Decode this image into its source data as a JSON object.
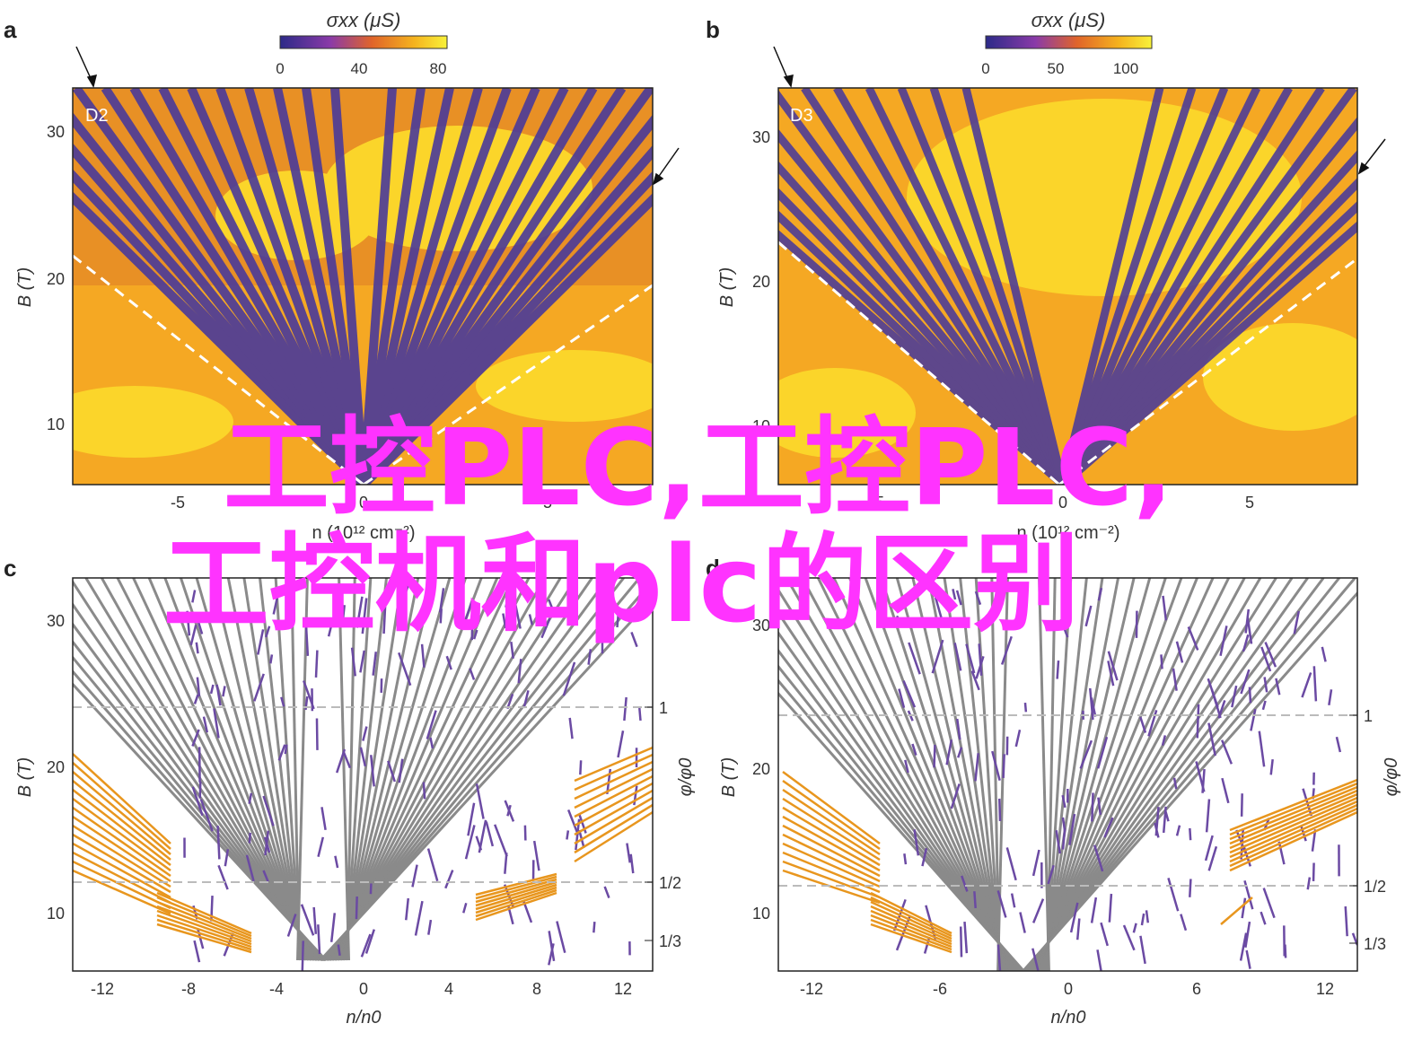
{
  "panels": [
    {
      "letter": "a",
      "label": "D2",
      "colorbar_title": "σxx (μS)",
      "colorbar_ticks": [
        "0",
        "40",
        "80"
      ],
      "x_ticks": [
        "-5",
        "0",
        "5"
      ],
      "y_ticks": [
        "10",
        "20",
        "30"
      ],
      "ylabel": "B (T)",
      "xlabel": "n (10¹² cm⁻²)"
    },
    {
      "letter": "b",
      "label": "D3",
      "colorbar_title": "σxx (μS)",
      "colorbar_ticks": [
        "0",
        "50",
        "100"
      ],
      "x_ticks": [
        "-5",
        "0",
        "5"
      ],
      "y_ticks": [
        "10",
        "20",
        "30"
      ],
      "ylabel": "B (T)",
      "xlabel": "n (10¹² cm⁻²)"
    },
    {
      "letter": "c",
      "x_ticks": [
        "-12",
        "-8",
        "-4",
        "0",
        "4",
        "8",
        "12"
      ],
      "y_ticks": [
        "10",
        "20",
        "30"
      ],
      "right_ticks": [
        "1",
        "1/2",
        "1/3"
      ],
      "ylabel": "B (T)",
      "right_label": "φ/φ0",
      "xlabel": "n/n0"
    },
    {
      "letter": "d",
      "x_ticks": [
        "-12",
        "-6",
        "0",
        "6",
        "12"
      ],
      "y_ticks": [
        "10",
        "20",
        "30"
      ],
      "right_ticks": [
        "1",
        "1/2",
        "1/3"
      ],
      "ylabel": "B (T)",
      "right_label": "φ/φ0",
      "xlabel": "n/n0"
    }
  ],
  "overlay": {
    "line1": "工控PLC,工控PLC,",
    "line2": "工控机和plc的区别",
    "color": "#ff33ff"
  },
  "colors": {
    "colormap": [
      "#4a3a9a",
      "#7a5ab8",
      "#e07a20",
      "#f5a823",
      "#ffd21c",
      "#f6ee3a"
    ],
    "grey_lines": "#8a8a8a",
    "purple_lines": "#6b4aa3",
    "orange_lines": "#e8961e",
    "dashed": "#bbbbbb"
  }
}
